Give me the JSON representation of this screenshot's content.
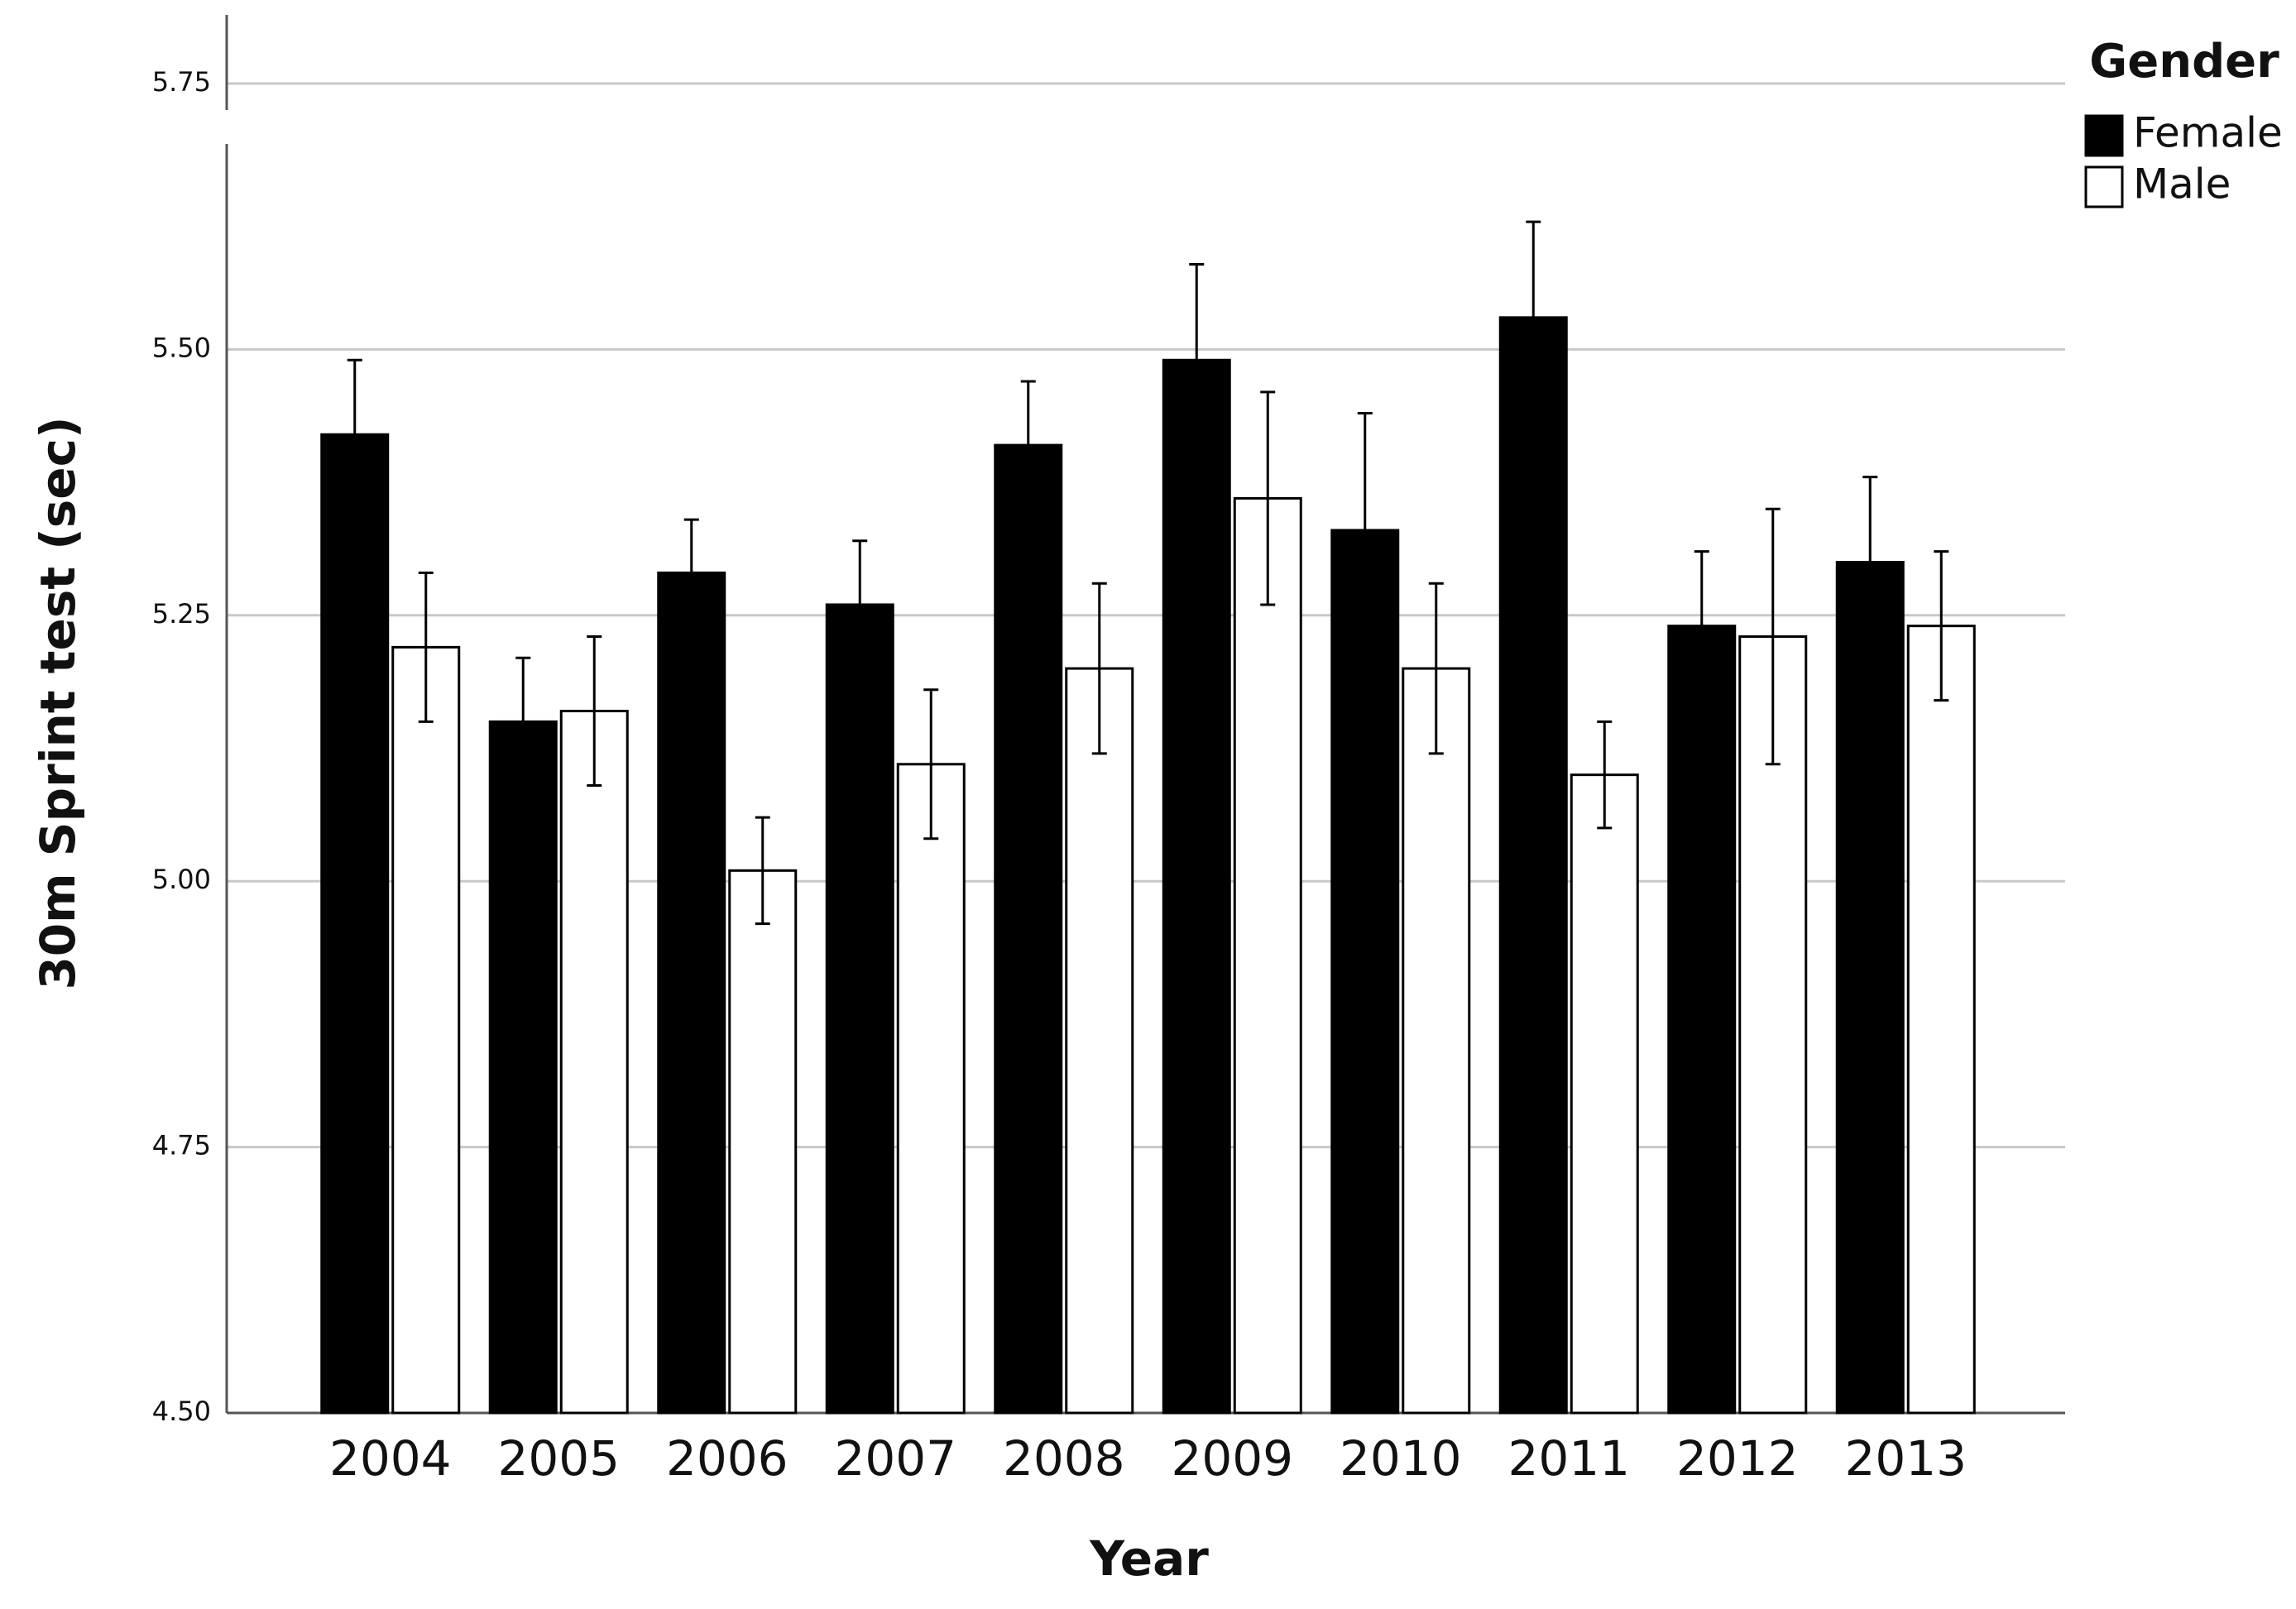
{
  "chart_data": {
    "type": "bar",
    "x_label": "Year",
    "y_label": "30m Sprint test (sec)",
    "legend_title": "Gender",
    "legend_position": "upper right",
    "categories": [
      "2004",
      "2005",
      "2006",
      "2007",
      "2008",
      "2009",
      "2010",
      "2011",
      "2012",
      "2013"
    ],
    "series": [
      {
        "name": "Female",
        "color": "#000000",
        "values": [
          5.42,
          5.15,
          5.29,
          5.26,
          5.41,
          5.49,
          5.33,
          5.53,
          5.24,
          5.3
        ],
        "errors": [
          0.07,
          0.06,
          0.05,
          0.06,
          0.06,
          0.09,
          0.11,
          0.09,
          0.07,
          0.08
        ]
      },
      {
        "name": "Male",
        "color": "#ffffff",
        "values": [
          5.22,
          5.16,
          5.01,
          5.11,
          5.2,
          5.36,
          5.2,
          5.1,
          5.23,
          5.24
        ],
        "errors": [
          0.07,
          0.07,
          0.05,
          0.07,
          0.08,
          0.1,
          0.08,
          0.05,
          0.12,
          0.07
        ]
      }
    ],
    "ylim": [
      4.5,
      5.75
    ],
    "yticks": [
      {
        "value": 4.5,
        "label": "4.50"
      },
      {
        "value": 4.75,
        "label": "4.75"
      },
      {
        "value": 5,
        "label": "5.00"
      },
      {
        "value": 5.25,
        "label": "5.25"
      },
      {
        "value": 5.5,
        "label": "5.50"
      },
      {
        "value": 5.75,
        "label": "5.75"
      }
    ],
    "grid": true
  }
}
